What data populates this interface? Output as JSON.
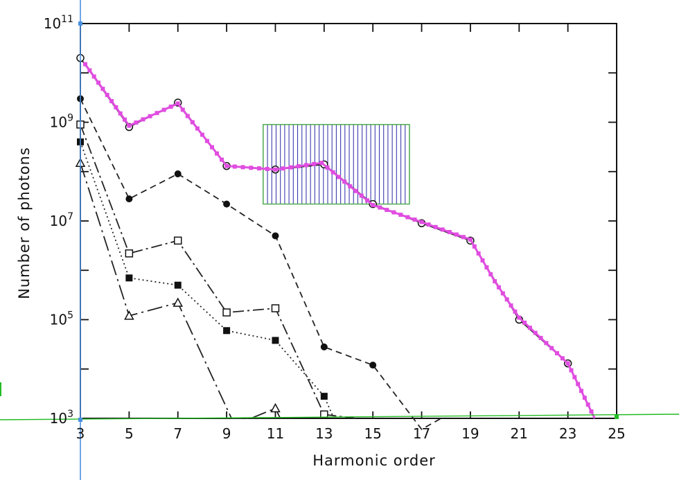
{
  "chart_data": {
    "type": "line",
    "title": "",
    "xlabel": "Harmonic order",
    "ylabel": "Number of photons",
    "xlim": [
      3,
      25
    ],
    "ylim": [
      1000,
      100000000000
    ],
    "yscale": "log",
    "x_ticks": [
      3,
      5,
      7,
      9,
      11,
      13,
      15,
      17,
      19,
      21,
      23,
      25
    ],
    "x_tick_labels": [
      "3",
      "5",
      "7",
      "9",
      "11",
      "13",
      "15",
      "17",
      "19",
      "21",
      "23",
      "25"
    ],
    "y_ticks": [
      1000,
      100000,
      10000000,
      1000000000,
      100000000000
    ],
    "y_tick_labels": [
      {
        "base": "10",
        "exp": "3"
      },
      {
        "base": "10",
        "exp": "5"
      },
      {
        "base": "10",
        "exp": "7"
      },
      {
        "base": "10",
        "exp": "9"
      },
      {
        "base": "10",
        "exp": "11"
      }
    ],
    "grid": false,
    "series": [
      {
        "marker": "open-circle",
        "style": "solid-thin",
        "color": "#222222",
        "points": [
          [
            3,
            20000000000
          ],
          [
            5,
            800000000
          ],
          [
            7,
            2500000000
          ],
          [
            9,
            130000000
          ],
          [
            11,
            110000000
          ],
          [
            13,
            140000000
          ],
          [
            15,
            22000000
          ],
          [
            17,
            9000000
          ],
          [
            19,
            4000000
          ],
          [
            21,
            100000
          ],
          [
            23,
            13000
          ],
          [
            24.1,
            1000
          ]
        ]
      },
      {
        "marker": "filled-circle",
        "style": "dashed",
        "color": "#222222",
        "points": [
          [
            3,
            3000000000
          ],
          [
            5,
            28000000
          ],
          [
            7,
            90000000
          ],
          [
            9,
            22000000
          ],
          [
            11,
            5000000
          ],
          [
            13,
            28000
          ],
          [
            15,
            12000
          ],
          [
            17,
            600
          ],
          [
            17.8,
            1000
          ]
        ]
      },
      {
        "marker": "open-square",
        "style": "dash-dot",
        "color": "#222222",
        "points": [
          [
            3,
            900000000
          ],
          [
            5,
            2200000
          ],
          [
            7,
            4000000
          ],
          [
            9,
            140000
          ],
          [
            11,
            170000
          ],
          [
            13,
            1200
          ],
          [
            14.3,
            1000
          ]
        ]
      },
      {
        "marker": "filled-square",
        "style": "dotted",
        "color": "#222222",
        "points": [
          [
            3,
            400000000
          ],
          [
            5,
            700000
          ],
          [
            7,
            500000
          ],
          [
            9,
            60000
          ],
          [
            11,
            38000
          ],
          [
            13,
            2800
          ],
          [
            13.4,
            1000
          ]
        ]
      },
      {
        "marker": "open-triangle",
        "style": "dash-dot-long",
        "color": "#222222",
        "points": [
          [
            3,
            150000000
          ],
          [
            5,
            120000
          ],
          [
            7,
            220000
          ],
          [
            9.2,
            1000
          ],
          [
            10,
            1000
          ],
          [
            11,
            1600
          ],
          [
            11.2,
            1000
          ]
        ]
      }
    ],
    "overlay": {
      "trace": {
        "color": "#e04de0",
        "points": [
          [
            3.2,
            15000000000
          ],
          [
            5,
            850000000
          ],
          [
            7,
            2400000000
          ],
          [
            9,
            130000000
          ],
          [
            11,
            110000000
          ],
          [
            12.9,
            150000000
          ],
          [
            15,
            21000000
          ],
          [
            17,
            9500000
          ],
          [
            19,
            4200000
          ],
          [
            20,
            600000
          ],
          [
            21,
            110000
          ],
          [
            23,
            13000
          ],
          [
            24.1,
            1000
          ]
        ]
      },
      "hatched_box": {
        "x_range": [
          10.5,
          16.5
        ],
        "y_range": [
          22000000,
          900000000
        ],
        "hatch_color": "#3a3ab0",
        "border_color": "#44aa44"
      },
      "vertical_line_color": "#4a90e0",
      "baseline_color": "#22bb22"
    }
  }
}
